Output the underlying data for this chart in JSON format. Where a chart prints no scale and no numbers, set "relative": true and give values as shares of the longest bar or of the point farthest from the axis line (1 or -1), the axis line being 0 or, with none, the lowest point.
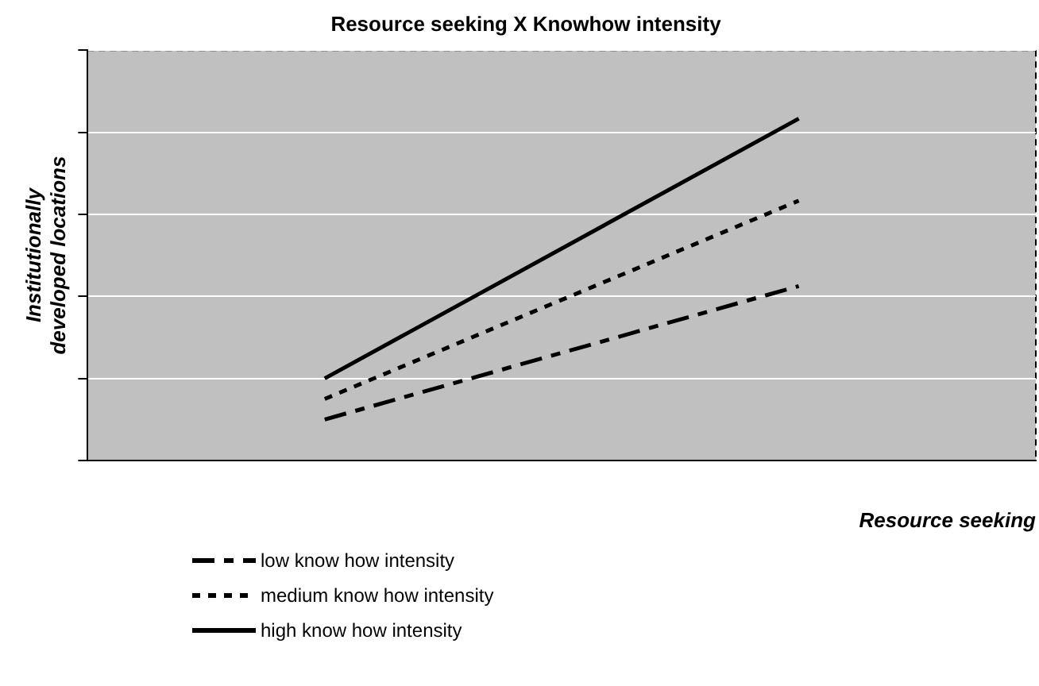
{
  "chart_data": {
    "type": "line",
    "title": "Resource seeking X Knowhow intensity",
    "xlabel": "Resource seeking",
    "ylabel": "Institutionally developed locations",
    "relative": true,
    "categories": [
      null,
      null
    ],
    "grid": "y",
    "legend": "bottom",
    "marker": "none",
    "series": [
      {
        "name": "low  know how  intensity",
        "color": "#000000",
        "line_style": "dashdot",
        "values": [
          0.12,
          0.51
        ]
      },
      {
        "name": "medium know how  intensity",
        "color": "#000000",
        "line_style": "dashed",
        "values": [
          0.18,
          0.76
        ]
      },
      {
        "name": "high know how  intensity",
        "color": "#000000",
        "line_style": "solid",
        "values": [
          0.24,
          1
        ]
      }
    ]
  }
}
